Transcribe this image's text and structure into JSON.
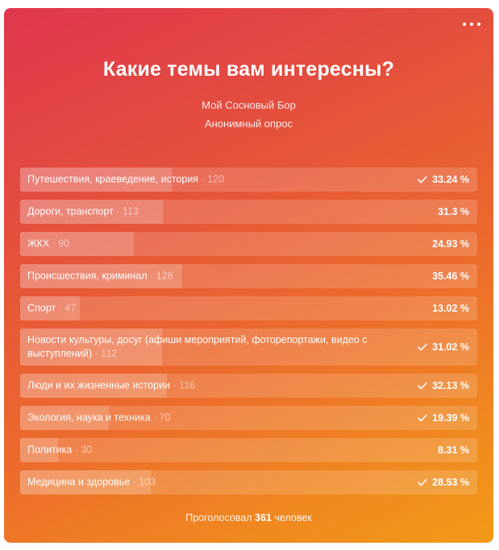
{
  "poll": {
    "title": "Какие темы вам интересны?",
    "owner": "Мой Сосновый Бор",
    "kind": "Анонимный опрос",
    "footer_prefix": "Проголосовал",
    "footer_count": "361",
    "footer_suffix": "человек",
    "options": [
      {
        "label": "Путешествия, краеведение, история",
        "count": "· 120",
        "percent": "33.24 %",
        "fraction": 0.3324,
        "checked": true
      },
      {
        "label": "Дороги, транспорт",
        "count": "· 113",
        "percent": "31.3 %",
        "fraction": 0.313,
        "checked": false
      },
      {
        "label": "ЖКХ",
        "count": "· 90",
        "percent": "24.93 %",
        "fraction": 0.2493,
        "checked": false
      },
      {
        "label": "Происшествия, криминал",
        "count": "· 128",
        "percent": "35.46 %",
        "fraction": 0.3546,
        "checked": false
      },
      {
        "label": "Спорт",
        "count": "· 47",
        "percent": "13.02 %",
        "fraction": 0.1302,
        "checked": false
      },
      {
        "label": "Новости культуры, досуг (афиши мероприятий, фоторепортажи, видео с выступлений)",
        "count": "· 112",
        "percent": "31.02 %",
        "fraction": 0.3102,
        "checked": true
      },
      {
        "label": "Люди и их жизненные истории",
        "count": "· 116",
        "percent": "32.13 %",
        "fraction": 0.3213,
        "checked": true
      },
      {
        "label": "Экология, наука и техника",
        "count": "· 70",
        "percent": "19.39 %",
        "fraction": 0.1939,
        "checked": true
      },
      {
        "label": "Политика",
        "count": "· 30",
        "percent": "8.31 %",
        "fraction": 0.0831,
        "checked": false
      },
      {
        "label": "Медицина и здоровье",
        "count": "· 103",
        "percent": "28.53 %",
        "fraction": 0.2853,
        "checked": true
      }
    ]
  },
  "icons": {
    "more": "more-dots-icon",
    "check": "check-icon"
  },
  "colors": {
    "gradient_start": "#e0364e",
    "gradient_end": "#f29a18",
    "text": "#ffffff"
  }
}
